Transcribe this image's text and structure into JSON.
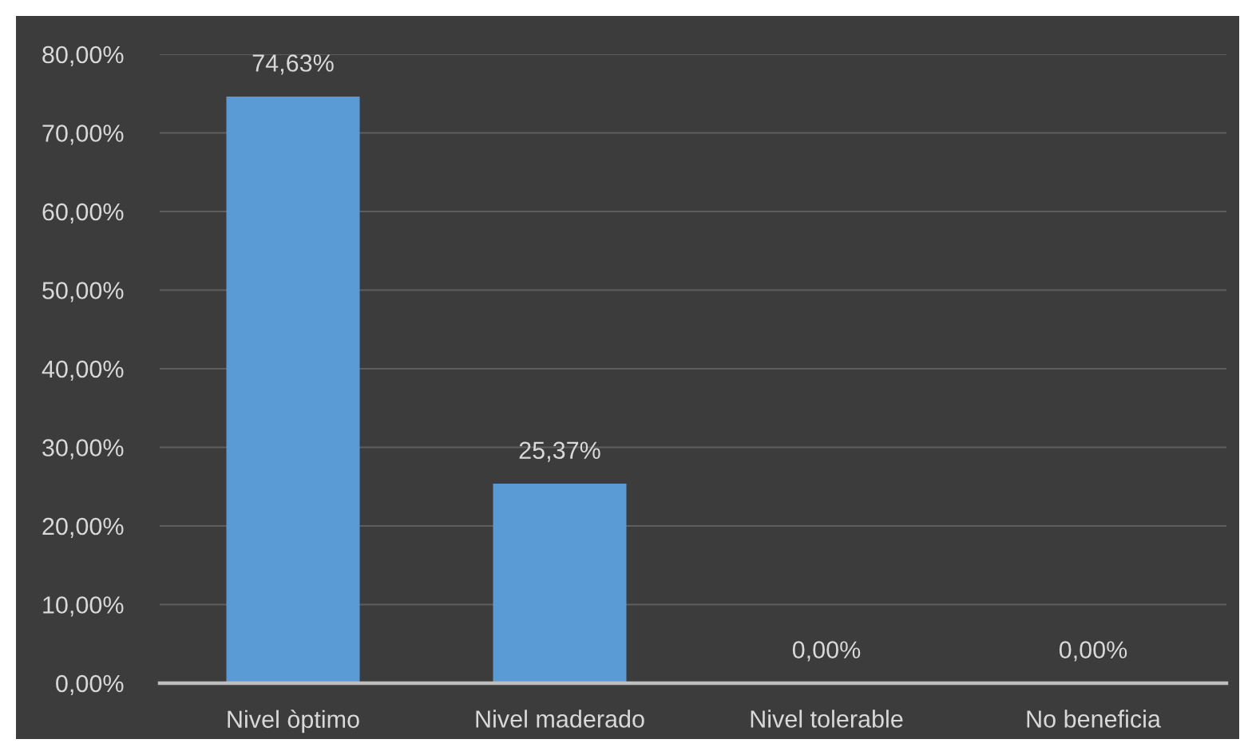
{
  "chart_data": {
    "type": "bar",
    "categories": [
      "Nivel òptimo",
      "Nivel maderado",
      "Nivel tolerable",
      "No beneficia"
    ],
    "values": [
      74.63,
      25.37,
      0,
      0
    ],
    "color": "#5b9bd5",
    "value_labels": [
      "74,63%",
      "25,37%",
      "0,00%",
      "0,00%"
    ],
    "ylim": [
      0,
      80
    ],
    "yticks": [
      {
        "value": 0,
        "label": "0,00%"
      },
      {
        "value": 10,
        "label": "10,00%"
      },
      {
        "value": 20,
        "label": "20,00%"
      },
      {
        "value": 30,
        "label": "30,00%"
      },
      {
        "value": 40,
        "label": "40,00%"
      },
      {
        "value": 50,
        "label": "50,00%"
      },
      {
        "value": 60,
        "label": "60,00%"
      },
      {
        "value": 70,
        "label": "70,00%"
      },
      {
        "value": 80,
        "label": "80,00%"
      }
    ],
    "grid": "y",
    "legend": false
  }
}
